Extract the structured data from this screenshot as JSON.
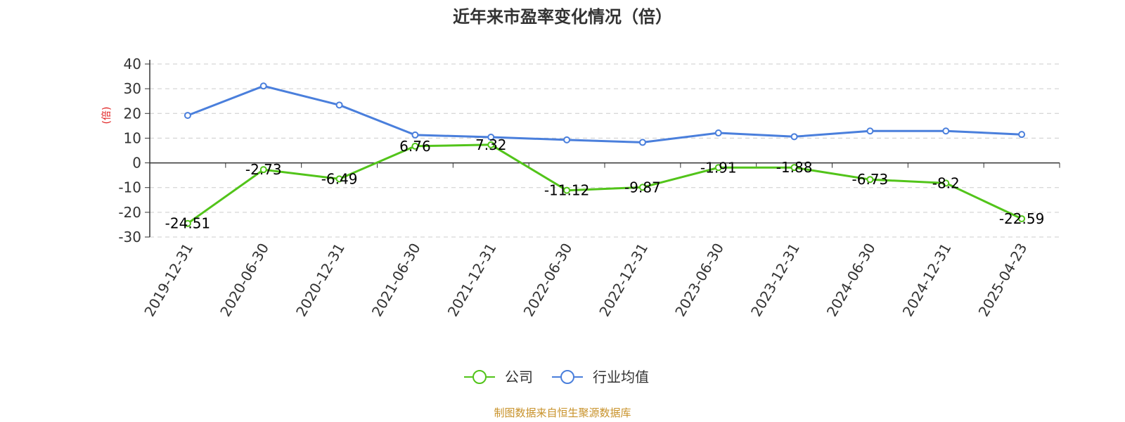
{
  "chart_data": {
    "type": "line",
    "title": "近年来市盈率变化情况（倍）",
    "ylabel": "(倍)",
    "categories": [
      "2019-12-31",
      "2020-06-30",
      "2020-12-31",
      "2021-06-30",
      "2021-12-31",
      "2022-06-30",
      "2022-12-31",
      "2023-06-30",
      "2023-12-31",
      "2024-06-30",
      "2024-12-31",
      "2025-04-23"
    ],
    "ylim": [
      -30,
      40
    ],
    "yticks": [
      40,
      30,
      20,
      10,
      0,
      -10,
      -20,
      -30
    ],
    "grid": true,
    "legend_position": "bottom",
    "series": [
      {
        "name": "公司",
        "color": "#52c41a",
        "values": [
          -24.51,
          -2.73,
          -6.49,
          6.76,
          7.32,
          -11.12,
          -9.87,
          -1.91,
          -1.88,
          -6.73,
          -8.2,
          -22.59
        ],
        "labels": [
          "-24.51",
          "-2.73",
          "-6.49",
          "6.76",
          "7.32",
          "-11.12",
          "-9.87",
          "-1.91",
          "-1.88",
          "-6.73",
          "-8.2",
          "-22.59"
        ]
      },
      {
        "name": "行业均值",
        "color": "#4a7fdc",
        "values": [
          19.2,
          31.1,
          23.4,
          11.3,
          10.4,
          9.3,
          8.3,
          12.1,
          10.6,
          12.9,
          12.9,
          11.5
        ]
      }
    ]
  },
  "footer": {
    "source": "制图数据来自恒生聚源数据库",
    "source_color": "#c8922a",
    "unit_color": "#e02020"
  }
}
